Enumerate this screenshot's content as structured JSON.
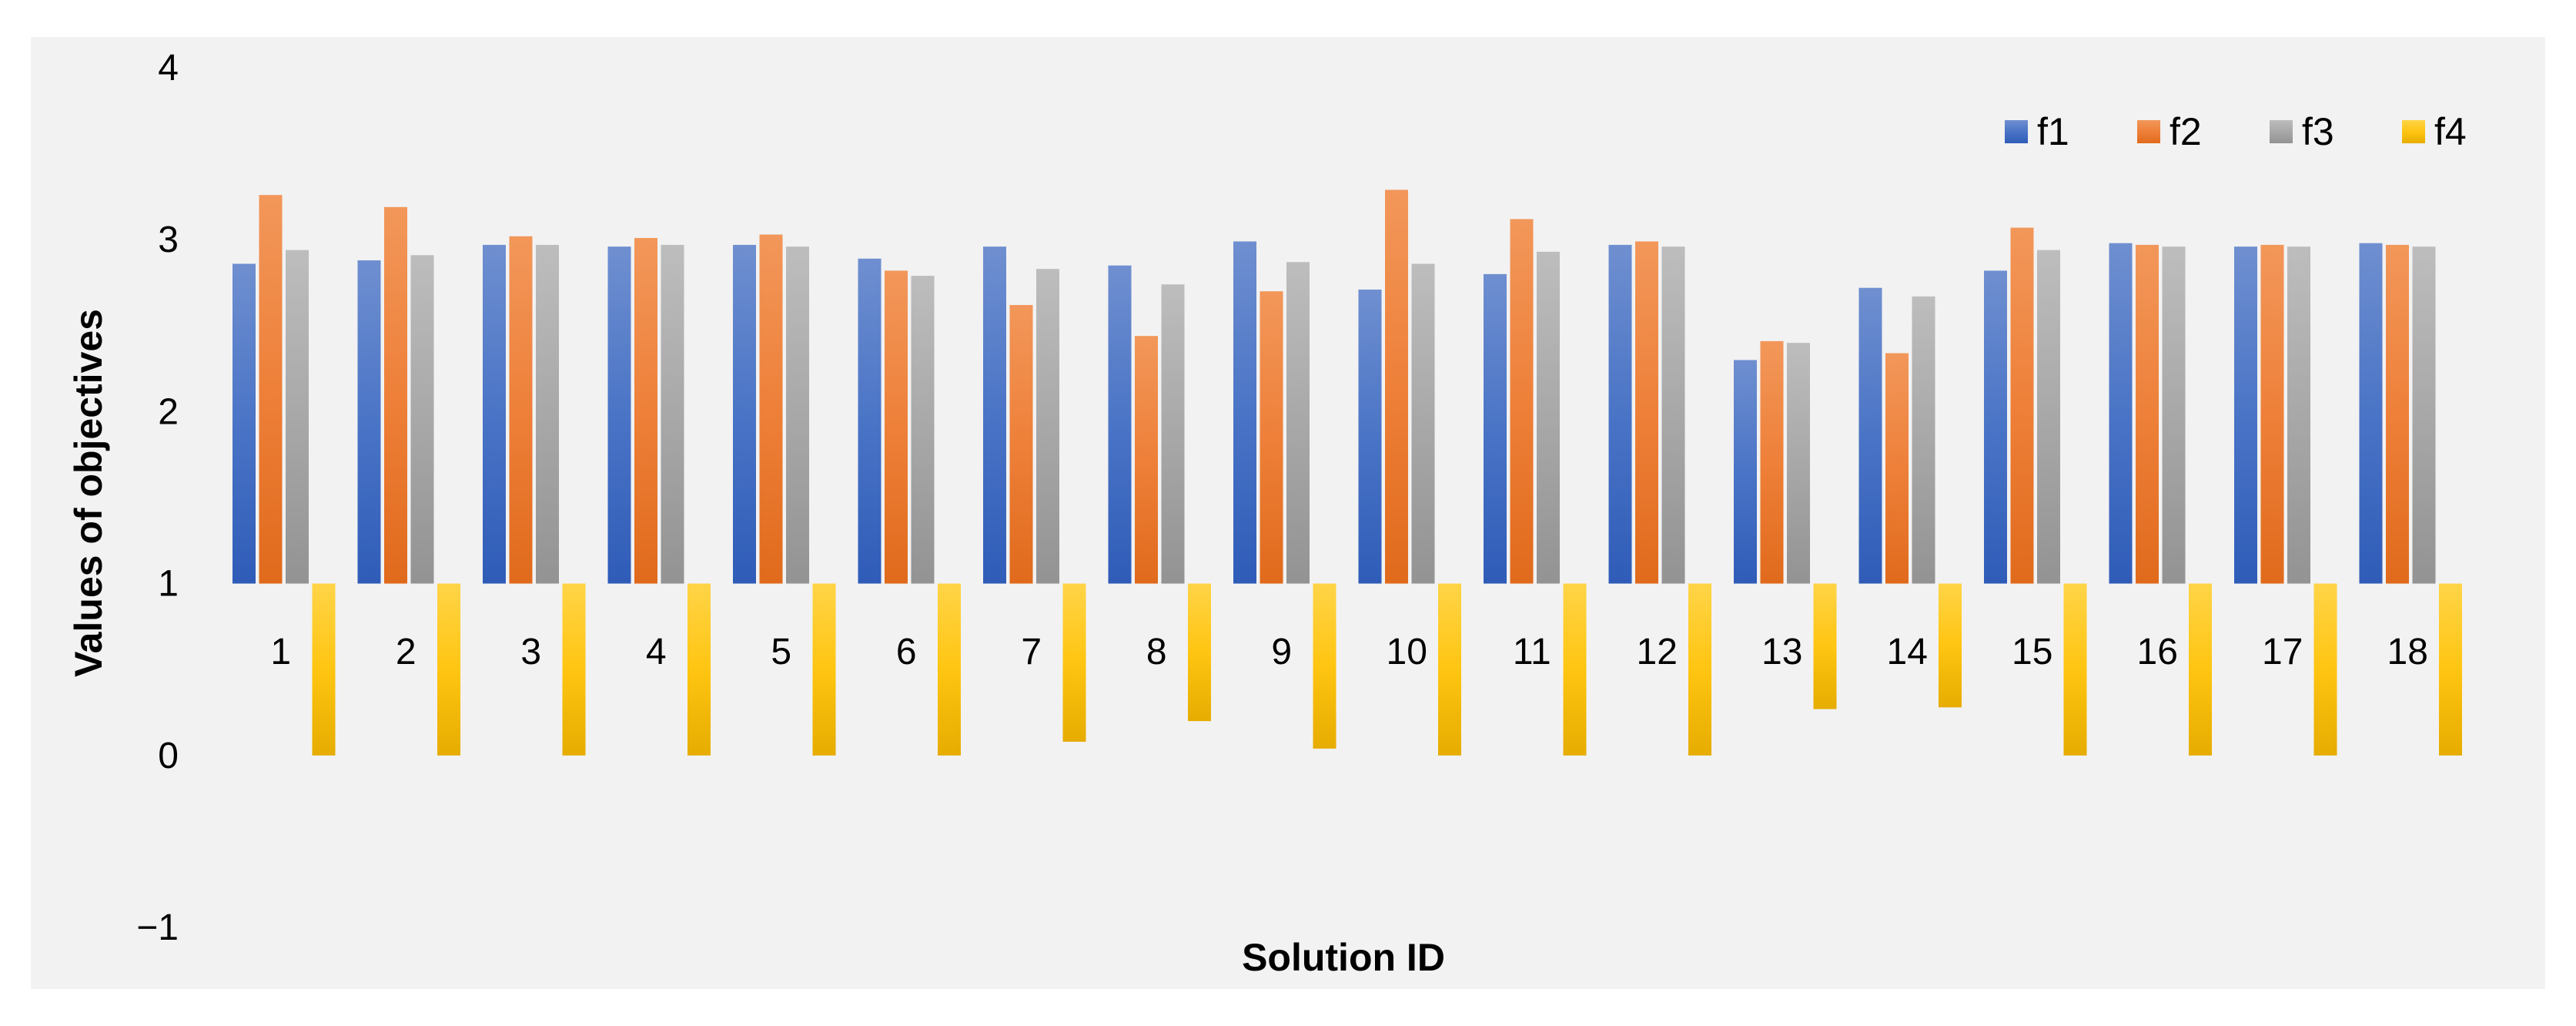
{
  "chart_data": {
    "type": "bar",
    "title": "",
    "xlabel": "Solution ID",
    "ylabel": "Values of objectives",
    "ylim": [
      -1,
      4
    ],
    "yticks": [
      -1,
      0,
      1,
      2,
      3,
      4
    ],
    "ytick_labels": [
      "−1",
      "0",
      "1",
      "2",
      "3",
      "4"
    ],
    "baseline": 1,
    "grid": false,
    "legend_position": "top-right",
    "categories": [
      "1",
      "2",
      "3",
      "4",
      "5",
      "6",
      "7",
      "8",
      "9",
      "10",
      "11",
      "12",
      "13",
      "14",
      "15",
      "16",
      "17",
      "18"
    ],
    "series": [
      {
        "name": "f1",
        "color": "#4472C4",
        "values": [
          2.86,
          2.88,
          2.97,
          2.96,
          2.97,
          2.89,
          2.96,
          2.85,
          2.99,
          2.71,
          2.8,
          2.97,
          2.3,
          2.72,
          2.82,
          2.98,
          2.96,
          2.98
        ]
      },
      {
        "name": "f2",
        "color": "#ED7D31",
        "values": [
          3.26,
          3.19,
          3.02,
          3.01,
          3.03,
          2.82,
          2.62,
          2.44,
          2.7,
          3.29,
          3.12,
          2.99,
          2.41,
          2.34,
          3.07,
          2.97,
          2.97,
          2.97
        ]
      },
      {
        "name": "f3",
        "color": "#A5A5A5",
        "values": [
          2.94,
          2.91,
          2.97,
          2.97,
          2.96,
          2.79,
          2.83,
          2.74,
          2.87,
          2.86,
          2.93,
          2.96,
          2.4,
          2.67,
          2.94,
          2.96,
          2.96,
          2.96
        ]
      },
      {
        "name": "f4",
        "color": "#FFC000",
        "values": [
          0.0,
          0.0,
          0.0,
          0.0,
          0.0,
          0.0,
          0.08,
          0.2,
          0.04,
          0.0,
          0.0,
          0.0,
          0.27,
          0.28,
          0.0,
          0.0,
          0.0,
          0.0
        ]
      }
    ]
  }
}
